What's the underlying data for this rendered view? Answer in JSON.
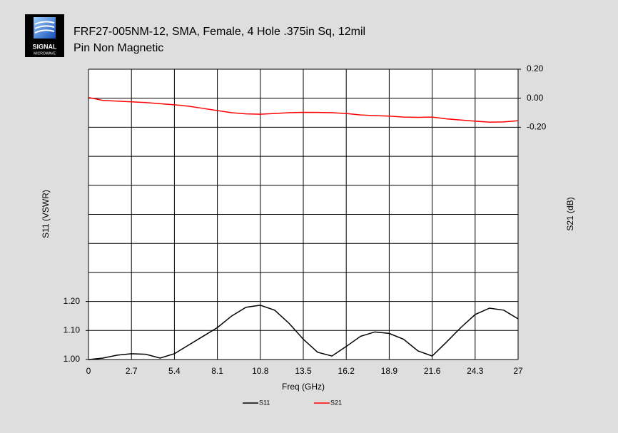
{
  "logo": {
    "name": "SIGNAL",
    "sub": "MICROWAVE"
  },
  "chart_data": {
    "type": "line",
    "title": [
      "FRF27-005NM-12, SMA, Female, 4 Hole .375in Sq, 12mil",
      "Pin Non Magnetic"
    ],
    "x_label": "Freq (GHz)",
    "y_label": "S11 (VSWR)",
    "y2_label": "S21 (dB)",
    "x": [
      0,
      0.9,
      1.8,
      2.7,
      3.6,
      4.5,
      5.4,
      6.3,
      7.2,
      8.1,
      9.0,
      9.9,
      10.8,
      11.7,
      12.6,
      13.5,
      14.4,
      15.3,
      16.2,
      17.1,
      18.0,
      18.9,
      19.8,
      20.7,
      21.6,
      22.5,
      23.4,
      24.3,
      25.2,
      26.1,
      27.0
    ],
    "series": [
      {
        "name": "S11",
        "color": "#000000",
        "values": [
          1.0,
          1.005,
          1.015,
          1.02,
          1.018,
          1.005,
          1.02,
          1.05,
          1.08,
          1.11,
          1.15,
          1.18,
          1.187,
          1.17,
          1.125,
          1.07,
          1.025,
          1.012,
          1.045,
          1.08,
          1.095,
          1.09,
          1.07,
          1.03,
          1.012,
          1.06,
          1.11,
          1.155,
          1.177,
          1.17,
          1.14
        ]
      },
      {
        "name": "S21",
        "color": "#ff0000",
        "axis": "y2",
        "values": [
          0.005,
          -0.015,
          -0.02,
          -0.025,
          -0.03,
          -0.038,
          -0.045,
          -0.055,
          -0.07,
          -0.085,
          -0.1,
          -0.108,
          -0.11,
          -0.105,
          -0.1,
          -0.097,
          -0.098,
          -0.1,
          -0.105,
          -0.115,
          -0.12,
          -0.123,
          -0.13,
          -0.132,
          -0.13,
          -0.142,
          -0.15,
          -0.158,
          -0.165,
          -0.163,
          -0.155
        ]
      }
    ],
    "xlim": [
      0,
      27
    ],
    "xticks": [
      0,
      2.7,
      5.4,
      8.1,
      10.8,
      13.5,
      16.2,
      18.9,
      21.6,
      24.3,
      27
    ],
    "ylim": [
      1.0,
      2.0
    ],
    "yticks": [
      {
        "value": 1.0,
        "label": "1.00"
      },
      {
        "value": 1.1,
        "label": "1.10"
      },
      {
        "value": 1.2,
        "label": "1.20"
      }
    ],
    "ygrid": [
      1.0,
      1.1,
      1.2,
      1.3,
      1.4,
      1.5,
      1.6,
      1.7,
      1.8,
      1.9,
      2.0
    ],
    "y2lim": [
      -1.8,
      0.2
    ],
    "y2ticks": [
      {
        "value": 0.2,
        "label": "0.20"
      },
      {
        "value": 0.0,
        "label": "0.00"
      },
      {
        "value": -0.2,
        "label": "-0.20"
      }
    ],
    "grid": true,
    "legend": "bottom"
  }
}
